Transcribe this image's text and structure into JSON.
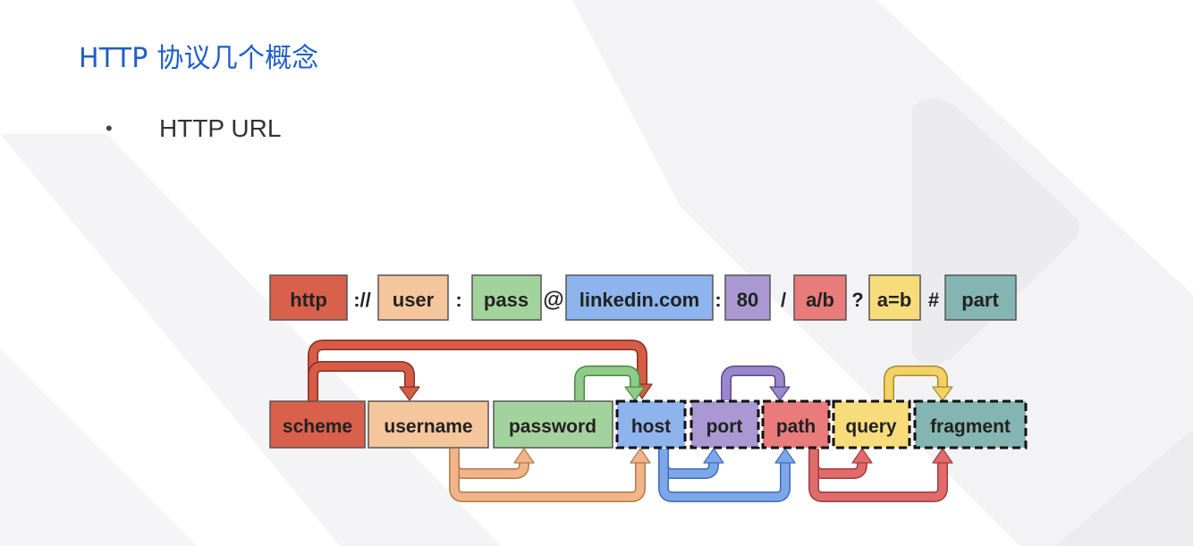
{
  "title": "HTTP 协议几个概念",
  "bullet": {
    "marker": "•",
    "text": "HTTP URL"
  },
  "url_parts": [
    {
      "key": "scheme",
      "label": "http",
      "color": "#d9604b"
    },
    {
      "key": "sep1",
      "label": "://"
    },
    {
      "key": "user",
      "label": "user",
      "color": "#f5c59b"
    },
    {
      "key": "sep2",
      "label": ":"
    },
    {
      "key": "pass",
      "label": "pass",
      "color": "#a3d39c"
    },
    {
      "key": "sep3",
      "label": "@"
    },
    {
      "key": "host",
      "label": "linkedin.com",
      "color": "#8eb4ee"
    },
    {
      "key": "sep4",
      "label": ":"
    },
    {
      "key": "port",
      "label": "80",
      "color": "#aa98d2"
    },
    {
      "key": "sep5",
      "label": "/"
    },
    {
      "key": "path",
      "label": "a/b",
      "color": "#e97b7b"
    },
    {
      "key": "sep6",
      "label": "?"
    },
    {
      "key": "query",
      "label": "a=b",
      "color": "#f8dc7c"
    },
    {
      "key": "sep7",
      "label": "#"
    },
    {
      "key": "fragment",
      "label": "part",
      "color": "#85b5b2"
    }
  ],
  "components": [
    {
      "key": "scheme",
      "label": "scheme",
      "color": "#d9604b",
      "optional": false
    },
    {
      "key": "username",
      "label": "username",
      "color": "#f5c59b",
      "optional": false
    },
    {
      "key": "password",
      "label": "password",
      "color": "#a3d39c",
      "optional": false
    },
    {
      "key": "host",
      "label": "host",
      "color": "#8eb4ee",
      "optional": true
    },
    {
      "key": "port",
      "label": "port",
      "color": "#aa98d2",
      "optional": true
    },
    {
      "key": "path",
      "label": "path",
      "color": "#e97b7b",
      "optional": true
    },
    {
      "key": "query",
      "label": "query",
      "color": "#f8dc7c",
      "optional": true
    },
    {
      "key": "fragment",
      "label": "fragment",
      "color": "#85b5b2",
      "optional": true
    }
  ],
  "arrow_colors": {
    "scheme": "#d65c46",
    "username": "#f2b58a",
    "password": "#8fcb88",
    "host": "#7da7e8",
    "port": "#9b87cb",
    "path": "#e06b6b",
    "query": "#f3d265"
  }
}
